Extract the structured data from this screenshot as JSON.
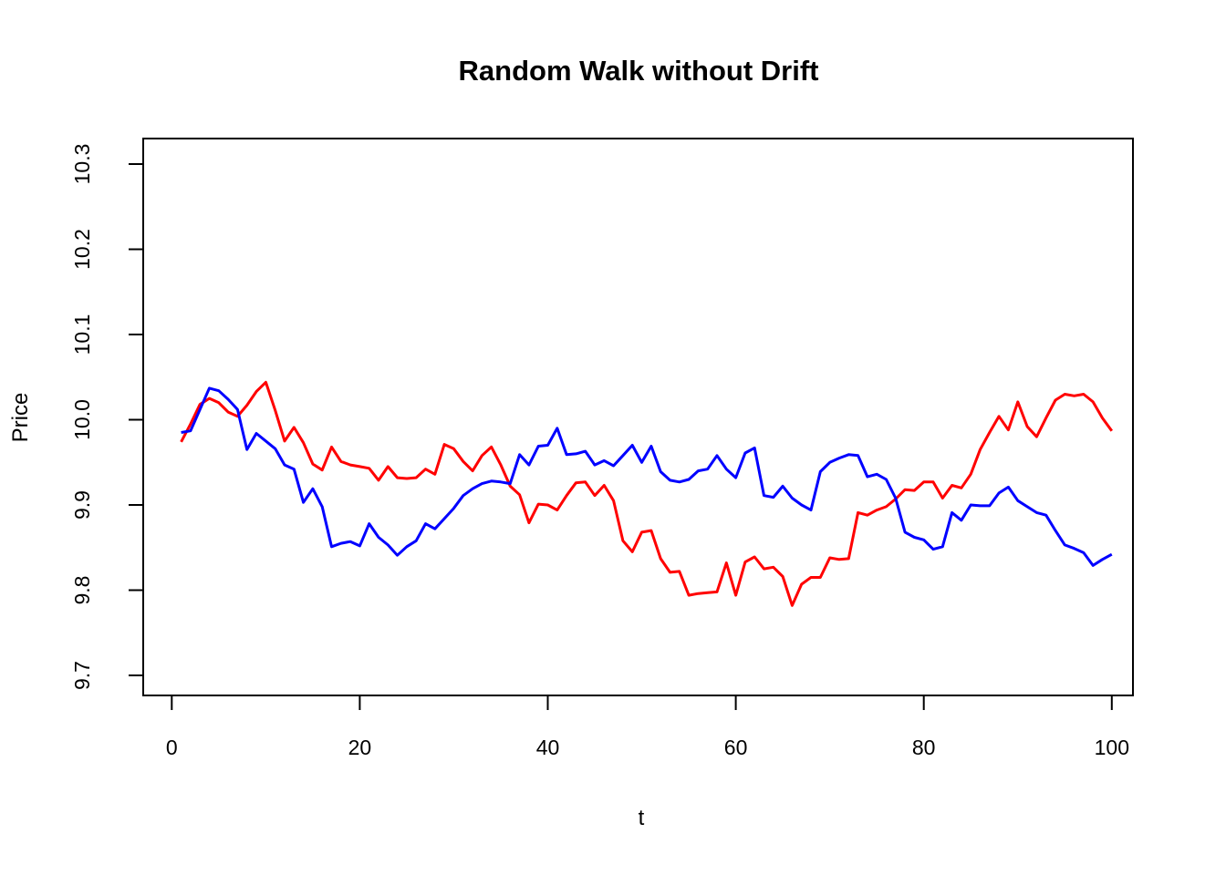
{
  "chart_data": {
    "type": "line",
    "title": "Random Walk without Drift",
    "xlabel": "t",
    "ylabel": "Price",
    "x_ticks": [
      0,
      20,
      40,
      60,
      80,
      100
    ],
    "y_ticks": [
      9.7,
      9.8,
      9.9,
      10.0,
      10.1,
      10.2,
      10.3
    ],
    "xlim": [
      -3,
      102.3
    ],
    "ylim": [
      9.676,
      10.33
    ],
    "grid": "off",
    "legend": "none",
    "frame_color": "#000000",
    "background_color": "#ffffff",
    "x_start": 1,
    "series": [
      {
        "name": "random-walk-red",
        "color": "#ff0000",
        "values": [
          9.974,
          9.995,
          10.018,
          10.025,
          10.02,
          10.009,
          10.004,
          10.017,
          10.033,
          10.044,
          10.011,
          9.975,
          9.991,
          9.973,
          9.948,
          9.941,
          9.968,
          9.951,
          9.947,
          9.945,
          9.943,
          9.929,
          9.945,
          9.932,
          9.931,
          9.932,
          9.942,
          9.936,
          9.971,
          9.966,
          9.951,
          9.94,
          9.958,
          9.968,
          9.947,
          9.922,
          9.912,
          9.879,
          9.901,
          9.9,
          9.894,
          9.911,
          9.926,
          9.927,
          9.911,
          9.923,
          9.905,
          9.858,
          9.845,
          9.868,
          9.87,
          9.837,
          9.821,
          9.822,
          9.794,
          9.796,
          9.797,
          9.798,
          9.832,
          9.794,
          9.833,
          9.839,
          9.825,
          9.827,
          9.816,
          9.782,
          9.807,
          9.815,
          9.815,
          9.838,
          9.836,
          9.837,
          9.891,
          9.888,
          9.894,
          9.898,
          9.907,
          9.918,
          9.917,
          9.927,
          9.927,
          9.908,
          9.923,
          9.92,
          9.936,
          9.965,
          9.985,
          10.004,
          9.988,
          10.021,
          9.992,
          9.98,
          10.002,
          10.023,
          10.03,
          10.028,
          10.03,
          10.021,
          10.002,
          9.987
        ]
      },
      {
        "name": "random-walk-blue",
        "color": "#0000ff",
        "values": [
          9.985,
          9.987,
          10.012,
          10.037,
          10.034,
          10.024,
          10.012,
          9.965,
          9.984,
          9.975,
          9.966,
          9.947,
          9.942,
          9.903,
          9.919,
          9.898,
          9.851,
          9.855,
          9.857,
          9.852,
          9.878,
          9.862,
          9.853,
          9.841,
          9.851,
          9.858,
          9.878,
          9.872,
          9.884,
          9.896,
          9.911,
          9.919,
          9.925,
          9.928,
          9.927,
          9.925,
          9.959,
          9.947,
          9.969,
          9.97,
          9.99,
          9.959,
          9.96,
          9.963,
          9.947,
          9.952,
          9.946,
          9.958,
          9.97,
          9.95,
          9.969,
          9.939,
          9.929,
          9.927,
          9.93,
          9.94,
          9.942,
          9.958,
          9.942,
          9.932,
          9.961,
          9.967,
          9.911,
          9.909,
          9.922,
          9.908,
          9.9,
          9.894,
          9.939,
          9.95,
          9.955,
          9.959,
          9.958,
          9.933,
          9.936,
          9.93,
          9.908,
          9.868,
          9.862,
          9.859,
          9.848,
          9.851,
          9.891,
          9.882,
          9.9,
          9.899,
          9.899,
          9.914,
          9.921,
          9.905,
          9.898,
          9.891,
          9.888,
          9.87,
          9.853,
          9.849,
          9.844,
          9.829,
          9.836,
          9.842
        ]
      }
    ]
  }
}
